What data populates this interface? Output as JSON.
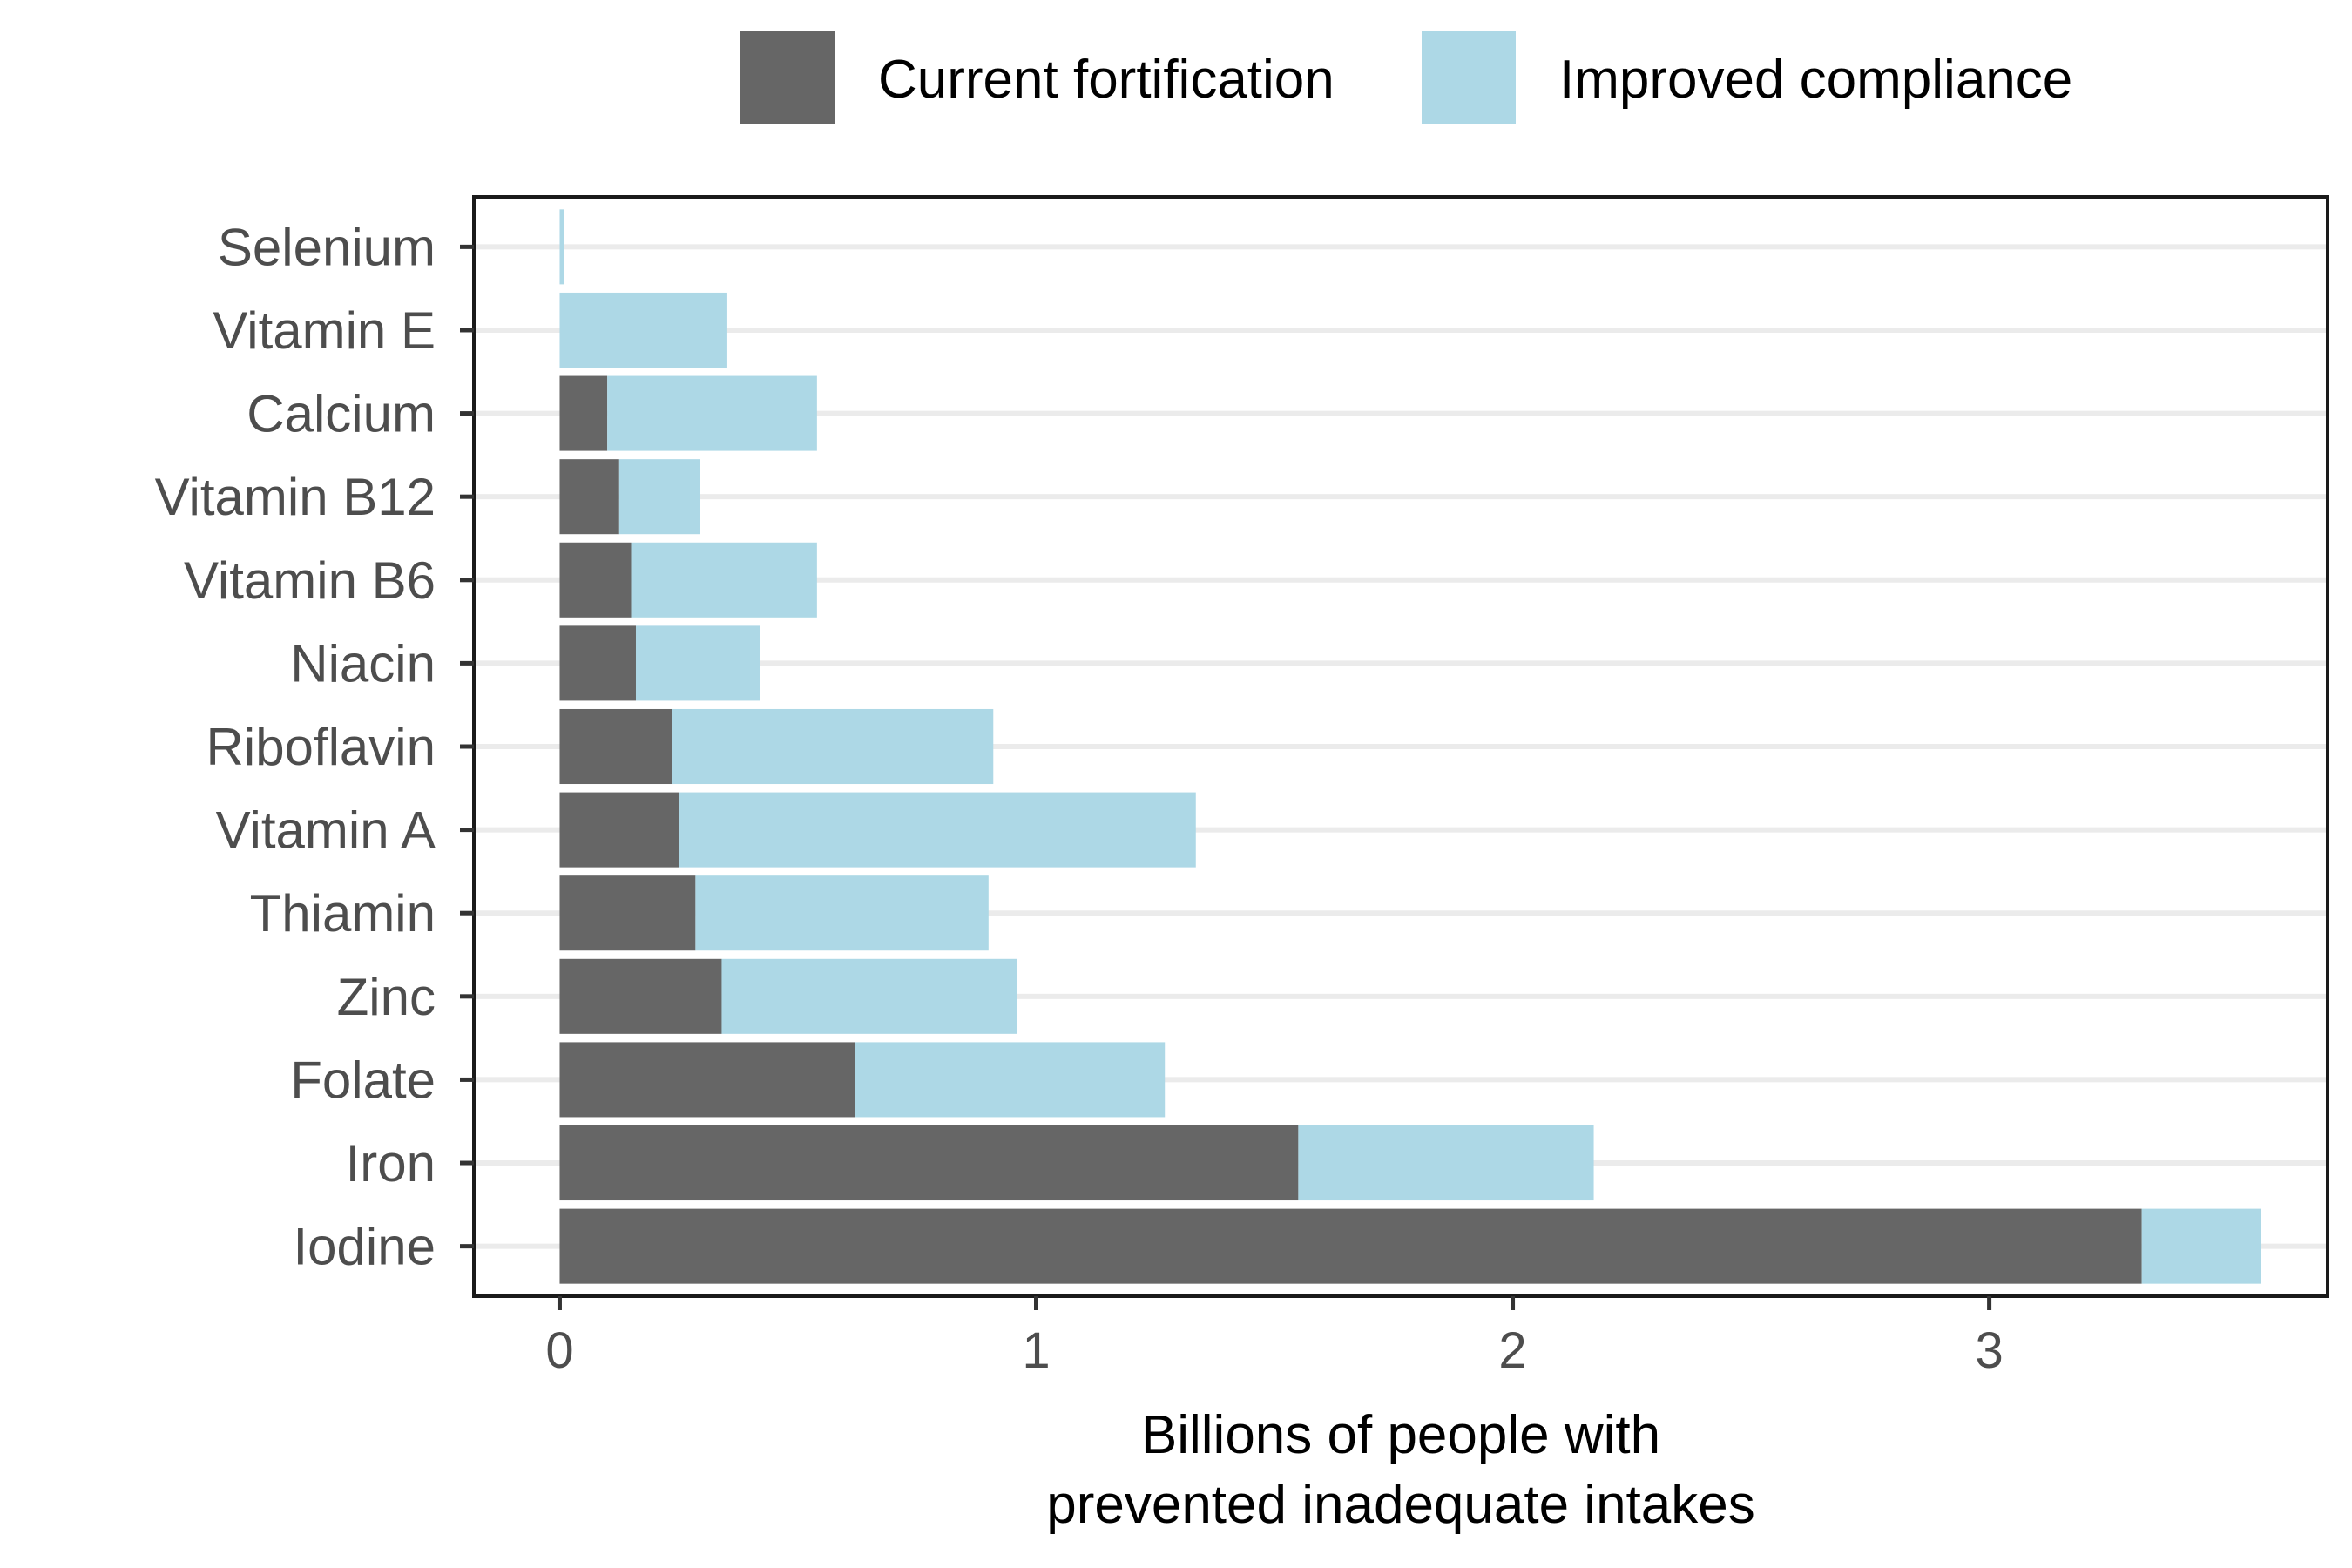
{
  "chart_data": {
    "type": "bar",
    "orientation": "horizontal",
    "stacked": true,
    "categories": [
      "Iodine",
      "Iron",
      "Folate",
      "Zinc",
      "Thiamin",
      "Vitamin A",
      "Riboflavin",
      "Niacin",
      "Vitamin B6",
      "Vitamin B12",
      "Calcium",
      "Vitamin E",
      "Selenium"
    ],
    "series": [
      {
        "name": "Current fortification",
        "color": "#666666",
        "values": [
          3.32,
          1.55,
          0.62,
          0.34,
          0.285,
          0.25,
          0.235,
          0.16,
          0.15,
          0.125,
          0.1,
          0.0,
          0.0
        ]
      },
      {
        "name": "Improved compliance",
        "color": "#add8e6",
        "values": [
          0.25,
          0.62,
          0.65,
          0.62,
          0.615,
          1.085,
          0.675,
          0.26,
          0.39,
          0.17,
          0.44,
          0.35,
          0.01
        ]
      }
    ],
    "xlabel_lines": [
      "Billions of people with",
      "prevented inadequate intakes"
    ],
    "xlim": [
      -0.18,
      3.71
    ],
    "xticks": [
      "0",
      "1",
      "2",
      "3"
    ],
    "xtick_values": [
      0,
      1,
      2,
      3
    ],
    "grid": "horizontal major lines",
    "legend_position": "top"
  }
}
